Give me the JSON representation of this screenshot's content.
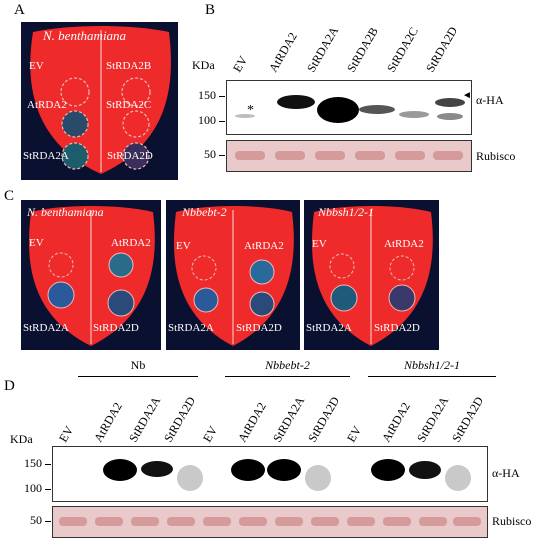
{
  "panels": {
    "A": {
      "label": "A",
      "title": "N. benthamiana",
      "spots": [
        "EV",
        "StRDA2B",
        "AtRDA2",
        "StRDA2C",
        "StRDA2A",
        "StRDA2D"
      ]
    },
    "B": {
      "label": "B",
      "kda": "KDa",
      "lanes": [
        "EV",
        "AtRDA2",
        "StRDA2A",
        "StRDA2B",
        "StRDA2C",
        "StRDA2D"
      ],
      "mw_upper": [
        "150",
        "100"
      ],
      "mw_lower": [
        "50"
      ],
      "asterisk": "*",
      "arrow": "◄",
      "antibody": "α-HA",
      "loading": "Rubisco"
    },
    "C": {
      "label": "C",
      "leaves": [
        {
          "title": "N. benthamiana",
          "spots": [
            "EV",
            "AtRDA2",
            "StRDA2A",
            "StRDA2D"
          ]
        },
        {
          "title": "Nbbebt-2",
          "spots": [
            "EV",
            "AtRDA2",
            "StRDA2A",
            "StRDA2D"
          ]
        },
        {
          "title": "Nbbsh1/2-1",
          "spots": [
            "EV",
            "AtRDA2",
            "StRDA2A",
            "StRDA2D"
          ]
        }
      ]
    },
    "D": {
      "label": "D",
      "kda": "KDa",
      "groups": [
        {
          "name": "Nb",
          "italic": false
        },
        {
          "name": "Nbbebt-2",
          "italic": true
        },
        {
          "name": "Nbbsh1/2-1",
          "italic": true
        }
      ],
      "lanes": [
        "EV",
        "AtRDA2",
        "StRDA2A",
        "StRDA2D",
        "EV",
        "AtRDA2",
        "StRDA2A",
        "StRDA2D",
        "EV",
        "AtRDA2",
        "StRDA2A",
        "StRDA2D"
      ],
      "mw_upper": [
        "150",
        "100"
      ],
      "mw_lower": [
        "50"
      ],
      "antibody": "α-HA",
      "loading": "Rubisco"
    }
  }
}
